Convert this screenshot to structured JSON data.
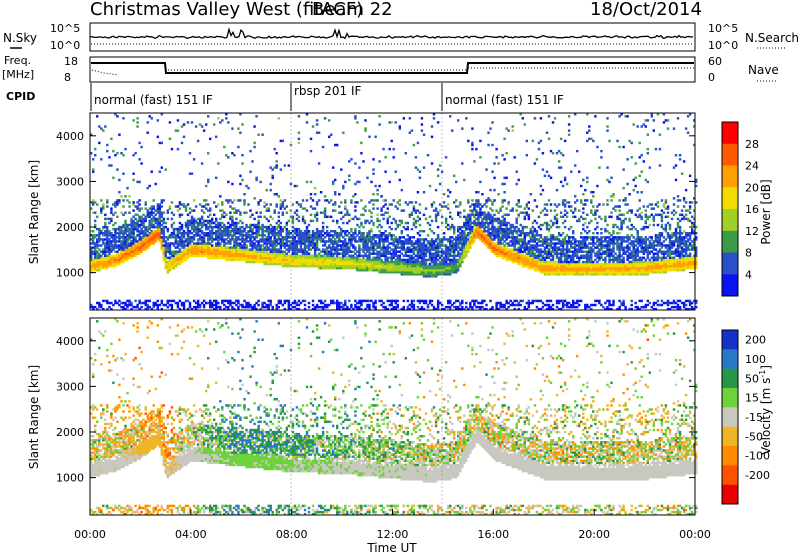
{
  "header": {
    "title": "Christmas Valley West (fitACF)",
    "beam_label": "Beam 22",
    "date": "18/Oct/2014"
  },
  "summary_panels": {
    "nsky_label": "N.Sky",
    "nsearch_label": "N.Search",
    "nsky_ticks": [
      "10^5",
      "10^0"
    ],
    "nsearch_ticks": [
      "10^5",
      "10^0"
    ],
    "freq_label": "Freq.",
    "freq_unit": "[MHz]",
    "freq_ticks": [
      "18",
      "8"
    ],
    "nave_label": "Nave",
    "nave_ticks": [
      "60",
      "0"
    ],
    "cpid_label": "CPID"
  },
  "cpid_segments": [
    {
      "label": "normal (fast) 151 IF",
      "start_hour": 0
    },
    {
      "label": "rbsp 201 IF",
      "start_hour": 8
    },
    {
      "label": "normal (fast) 151 IF",
      "start_hour": 14
    }
  ],
  "axes": {
    "xlabel": "Time UT",
    "x_ticks": [
      "00:00",
      "04:00",
      "08:00",
      "12:00",
      "16:00",
      "20:00",
      "00:00"
    ],
    "ylabel_power": "Slant Range [km]",
    "ylabel_velocity": "Slant Range [km]",
    "y_ticks": [
      "4000",
      "3000",
      "2000",
      "1000"
    ]
  },
  "colorbars": {
    "power": {
      "label": "Power [dB]",
      "ticks": [
        "28",
        "24",
        "20",
        "16",
        "12",
        "8",
        "4"
      ],
      "colors": [
        "#ff0000",
        "#ff5a00",
        "#ffa000",
        "#f0dc00",
        "#a0d028",
        "#3c9c46",
        "#2a50c8",
        "#0a14f0"
      ]
    },
    "velocity": {
      "label": "Velocity [m s^-1]",
      "ticks": [
        "200",
        "100",
        "50",
        "15",
        "-15",
        "-50",
        "-100",
        "-200"
      ],
      "colors": [
        "#1432c8",
        "#2878c8",
        "#289648",
        "#6ed23c",
        "#c8c8c0",
        "#f0b428",
        "#ff8c00",
        "#ff5000",
        "#e60000"
      ]
    }
  },
  "chart_data": [
    {
      "type": "heatmap",
      "title": "Power",
      "xlabel": "Time UT",
      "ylabel": "Slant Range [km]",
      "xlim": [
        0,
        24
      ],
      "ylim": [
        180,
        4500
      ],
      "colorbar_label": "Power [dB]",
      "value_range": [
        0,
        30
      ],
      "main_band": {
        "hours": [
          0,
          1,
          2,
          2.7,
          3,
          4,
          6,
          8,
          10,
          12,
          13.5,
          14.5,
          15.3,
          16,
          18,
          20,
          22,
          24
        ],
        "center_km": [
          1120,
          1260,
          1550,
          1850,
          1100,
          1480,
          1360,
          1240,
          1200,
          1100,
          1020,
          1100,
          1900,
          1500,
          1080,
          1060,
          1080,
          1200
        ],
        "peak_power_db": [
          24,
          26,
          28,
          29,
          22,
          26,
          24,
          22,
          20,
          18,
          16,
          14,
          28,
          27,
          25,
          24,
          24,
          25
        ]
      }
    },
    {
      "type": "heatmap",
      "title": "Velocity",
      "xlabel": "Time UT",
      "ylabel": "Slant Range [km]",
      "xlim": [
        0,
        24
      ],
      "ylim": [
        180,
        4500
      ],
      "colorbar_label": "Velocity [m s^-1]",
      "value_range": [
        -250,
        250
      ],
      "dominant_velocity_m_s": {
        "hours": [
          0,
          3,
          4,
          6,
          8,
          10,
          12,
          14,
          15,
          18,
          24
        ],
        "velocity": [
          0,
          -40,
          5,
          60,
          40,
          30,
          20,
          0,
          0,
          0,
          0
        ]
      }
    }
  ]
}
